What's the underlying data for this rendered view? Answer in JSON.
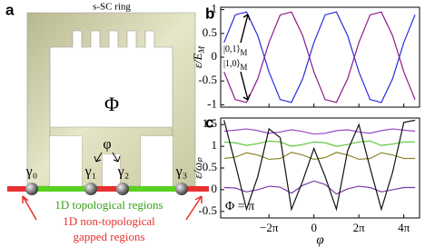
{
  "diagram": {
    "panel": "a",
    "ring_label": "s-SC ring",
    "flux": "Φ",
    "phase": "φ",
    "majoranas": [
      "γ₀",
      "γ₁",
      "γ₂",
      "γ₃"
    ],
    "legend_topological": "1D topological regions",
    "legend_nontopological": [
      "1D non-topological",
      "gapped regions"
    ]
  },
  "chart_data": [
    {
      "type": "line",
      "panel": "b",
      "ylabel": {
        "text": "ε/E",
        "subscript": "M"
      },
      "annotations": [
        {
          "text": "|0,1⟩",
          "subscript": "M"
        },
        {
          "text": "|1,0⟩",
          "subscript": "M"
        }
      ],
      "x": [
        -4,
        -3.5,
        -3,
        -2.5,
        -2,
        -1.5,
        -1,
        -0.5,
        0,
        0.5,
        1,
        1.5,
        2,
        2.5,
        3,
        3.5,
        4,
        4.5
      ],
      "series": [
        {
          "color": "#2a2ae0",
          "values": [
            0.309,
            0.891,
            0.951,
            0.454,
            -0.309,
            -0.891,
            -0.951,
            -0.454,
            0.309,
            0.891,
            0.951,
            0.454,
            -0.309,
            -0.891,
            -0.951,
            -0.454,
            0.309,
            0.891
          ]
        },
        {
          "color": "#8a1a8a",
          "values": [
            -0.309,
            -0.891,
            -0.951,
            -0.454,
            0.309,
            0.891,
            0.951,
            0.454,
            -0.309,
            -0.891,
            -0.951,
            -0.454,
            0.309,
            0.891,
            0.951,
            0.454,
            -0.309,
            -0.891
          ]
        }
      ],
      "xlim": [
        -4.15,
        4.7
      ],
      "ylim": [
        -1.05,
        1.05
      ],
      "xticks": [
        -2,
        0,
        2,
        4
      ],
      "yticks": [
        -1,
        -0.5,
        0,
        0.5,
        1
      ]
    },
    {
      "type": "line",
      "panel": "c",
      "ylabel": "ε/ωₚ",
      "xlabel": "φ",
      "annotation": "Φ = π",
      "x": [
        -4,
        -3.5,
        -3,
        -2.5,
        -2,
        -1.5,
        -1,
        -0.5,
        0,
        0.5,
        1,
        1.5,
        2,
        2.5,
        3,
        3.5,
        4,
        4.5
      ],
      "series": [
        {
          "color": "#9a4ac8",
          "values": [
            1.35,
            1.37,
            1.4,
            1.36,
            1.3,
            1.33,
            1.38,
            1.34,
            1.28,
            1.3,
            1.36,
            1.38,
            1.33,
            1.3,
            1.36,
            1.4,
            1.37,
            1.35
          ]
        },
        {
          "color": "#5cc83a",
          "values": [
            1.1,
            1.08,
            1.02,
            1.06,
            1.12,
            1.1,
            1.0,
            1.04,
            1.1,
            1.08,
            1.0,
            1.04,
            1.1,
            1.12,
            1.02,
            1.05,
            1.1,
            1.1
          ]
        },
        {
          "color": "#8a8a2a",
          "values": [
            0.72,
            0.75,
            0.85,
            0.8,
            0.7,
            0.72,
            0.86,
            0.8,
            0.7,
            0.74,
            0.86,
            0.8,
            0.7,
            0.72,
            0.85,
            0.8,
            0.72,
            0.72
          ]
        },
        {
          "color": "#7a3aa8",
          "values": [
            0.05,
            0.04,
            -0.05,
            0,
            0.08,
            0.06,
            -0.08,
            0.1,
            0.2,
            0.12,
            -0.1,
            0.02,
            0.08,
            0.05,
            -0.05,
            0,
            0.05,
            0.05
          ]
        },
        {
          "color": "#111111",
          "values": [
            1.6,
            0.6,
            -0.45,
            0.3,
            1.4,
            1.2,
            -0.45,
            0.2,
            0.95,
            0.3,
            -0.45,
            0.9,
            1.5,
            0.5,
            -0.45,
            0.4,
            1.55,
            1.6
          ]
        }
      ],
      "xlim": [
        -4.15,
        4.7
      ],
      "ylim": [
        -0.65,
        1.65
      ],
      "xticks": [
        {
          "value": -2,
          "label": "−2π"
        },
        0,
        {
          "value": 2,
          "label": "2π"
        },
        {
          "value": 4,
          "label": "4π"
        }
      ],
      "yticks": [
        -0.5,
        0,
        0.5,
        1,
        1.5
      ]
    }
  ]
}
